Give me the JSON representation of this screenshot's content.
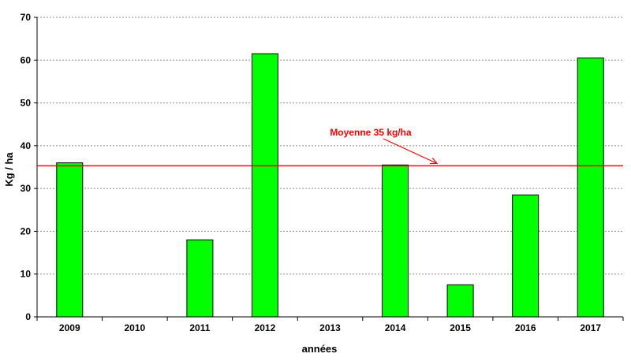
{
  "chart_data": {
    "type": "bar",
    "categories": [
      "2009",
      "2010",
      "2011",
      "2012",
      "2013",
      "2014",
      "2015",
      "2016",
      "2017"
    ],
    "values": [
      36,
      0,
      18,
      61.5,
      0,
      35.5,
      7.5,
      28.5,
      60.5
    ],
    "xlabel": "années",
    "ylabel": "Kg / ha",
    "ylim": [
      0,
      70
    ],
    "yticks": [
      0,
      10,
      20,
      30,
      40,
      50,
      60,
      70
    ],
    "grid": true,
    "bar_color": "#00ff00",
    "reference_line": {
      "value": 35.3,
      "color": "#ff0000"
    },
    "annotation": {
      "text": "Moyenne 35 kg/ha",
      "color": "#ff0000"
    }
  }
}
